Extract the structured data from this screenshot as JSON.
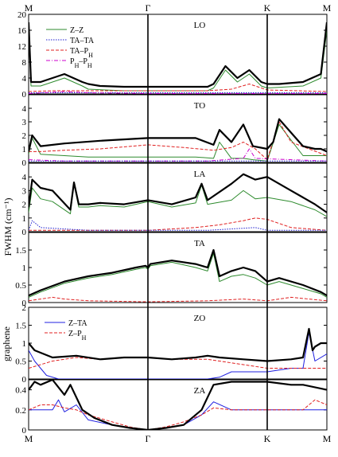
{
  "chart_data": {
    "type": "line",
    "x_symmetry_labels": [
      "M",
      "Γ",
      "K",
      "M"
    ],
    "x_symmetry_positions": [
      0,
      1,
      2,
      2.5
    ],
    "ylabel": "FWHM (cm⁻¹)",
    "side_label": "graphene",
    "colors": {
      "total": "#000000",
      "zz": "#2e8b2e",
      "tata": "#1f1fcf",
      "taph": "#e02020",
      "phph": "#cc00cc",
      "zta": "#2020e0",
      "zph": "#e02020"
    },
    "panels": [
      {
        "title": "LO",
        "ylim": [
          0,
          20
        ],
        "yticks": [
          0,
          4,
          8,
          12,
          16,
          20
        ],
        "legend": [
          "Z–Z",
          "TA–TA",
          "TA–P_H",
          "P_H–P_H"
        ],
        "series": [
          {
            "name": "",
            "role": "total",
            "x": [
              0,
              0.02,
              0.1,
              0.2,
              0.3,
              0.45,
              0.5,
              0.6,
              0.8,
              1.0,
              1.2,
              1.5,
              1.55,
              1.65,
              1.75,
              1.85,
              1.95,
              2.0,
              2.1,
              2.3,
              2.45,
              2.5
            ],
            "y": [
              18,
              3,
              3,
              4,
              5,
              3,
              2.5,
              2,
              1.8,
              1.8,
              1.8,
              1.8,
              2.5,
              7,
              4,
              6,
              3,
              2.5,
              2.5,
              3,
              5,
              18
            ]
          },
          {
            "name": "Z–Z",
            "role": "zz",
            "x": [
              0,
              0.02,
              0.1,
              0.2,
              0.3,
              0.45,
              0.5,
              0.8,
              1.0,
              1.2,
              1.5,
              1.55,
              1.65,
              1.75,
              1.85,
              1.95,
              2.0,
              2.3,
              2.45,
              2.5
            ],
            "y": [
              16,
              2,
              2,
              3,
              4,
              2,
              1.2,
              0.8,
              0.8,
              0.8,
              0.8,
              1.5,
              6,
              3,
              5,
              2,
              1.5,
              2,
              4,
              16
            ]
          },
          {
            "name": "TA–TA",
            "role": "tata",
            "x": [
              0,
              0.5,
              1.0,
              1.5,
              2.0,
              2.5
            ],
            "y": [
              0.3,
              0.3,
              0.3,
              0.3,
              0.3,
              0.3
            ]
          },
          {
            "name": "TA–P_H",
            "role": "taph",
            "x": [
              0,
              0.2,
              0.5,
              1.0,
              1.5,
              1.7,
              1.85,
              2.0,
              2.5
            ],
            "y": [
              0.6,
              0.8,
              0.8,
              0.8,
              0.8,
              1.2,
              2.5,
              1,
              0.6
            ]
          },
          {
            "name": "P_H–P_H",
            "role": "phph",
            "x": [
              0,
              0.3,
              0.5,
              1.0,
              1.5,
              2.0,
              2.5
            ],
            "y": [
              0.1,
              0.6,
              0.3,
              0.1,
              0.1,
              0.1,
              0.1
            ]
          }
        ]
      },
      {
        "title": "TO",
        "ylim": [
          0,
          5
        ],
        "yticks": [
          0,
          1,
          2,
          3,
          4,
          5
        ],
        "series": [
          {
            "name": "",
            "role": "total",
            "x": [
              0,
              0.03,
              0.1,
              0.3,
              0.6,
              1.0,
              1.4,
              1.55,
              1.6,
              1.7,
              1.8,
              1.88,
              2.0,
              2.05,
              2.1,
              2.3,
              2.4,
              2.45,
              2.5
            ],
            "y": [
              0.8,
              2,
              1.2,
              1.4,
              1.6,
              1.8,
              1.8,
              1.3,
              2.4,
              1.5,
              2.8,
              1.2,
              1,
              1.5,
              3.2,
              1.2,
              1,
              1,
              0.8
            ]
          },
          {
            "name": "",
            "role": "zz",
            "x": [
              0,
              0.03,
              0.1,
              0.5,
              1.0,
              1.4,
              1.55,
              1.6,
              1.7,
              1.8,
              1.88,
              2.0,
              2.1,
              2.3,
              2.5
            ],
            "y": [
              0.6,
              1.8,
              0.6,
              0.4,
              0.4,
              0.4,
              0.3,
              1.5,
              0.3,
              0.3,
              0.2,
              0.1,
              2.8,
              0.5,
              0.5
            ]
          },
          {
            "name": "",
            "role": "taph",
            "x": [
              0,
              0.1,
              0.3,
              0.6,
              1.0,
              1.3,
              1.55,
              1.7,
              1.8,
              1.9,
              2.0,
              2.1,
              2.2,
              2.5
            ],
            "y": [
              0.8,
              0.8,
              0.9,
              1.0,
              1.3,
              1.1,
              0.9,
              1.1,
              1.5,
              1.0,
              0.2,
              3.0,
              1.5,
              0.5
            ]
          },
          {
            "name": "",
            "role": "phph",
            "x": [
              0,
              0.3,
              0.6,
              1.0,
              1.5,
              1.8,
              1.85,
              1.9,
              2.5
            ],
            "y": [
              0.2,
              0.1,
              0.1,
              0.1,
              0.1,
              0.3,
              1.0,
              0.3,
              0.1
            ]
          },
          {
            "name": "",
            "role": "tata",
            "x": [
              0,
              0.5,
              1.0,
              1.5,
              2.0,
              2.5
            ],
            "y": [
              0.1,
              0.1,
              0.1,
              0.1,
              0.1,
              0.1
            ]
          }
        ]
      },
      {
        "title": "LA",
        "ylim": [
          0,
          5
        ],
        "yticks": [
          0,
          1,
          2,
          3,
          4,
          5
        ],
        "series": [
          {
            "name": "",
            "role": "total",
            "x": [
              0,
              0.03,
              0.1,
              0.2,
              0.35,
              0.38,
              0.42,
              0.5,
              0.6,
              0.8,
              1.0,
              1.2,
              1.4,
              1.45,
              1.5,
              1.7,
              1.8,
              1.9,
              2.0,
              2.2,
              2.4,
              2.5
            ],
            "y": [
              1.8,
              3.8,
              3.2,
              3.0,
              1.6,
              3.6,
              2.0,
              2.0,
              2.1,
              2.0,
              2.3,
              2.0,
              2.5,
              3.5,
              2.3,
              3.5,
              4.2,
              3.8,
              4.0,
              3.0,
              2.0,
              1.4
            ]
          },
          {
            "name": "",
            "role": "zz",
            "x": [
              0,
              0.03,
              0.1,
              0.2,
              0.35,
              0.38,
              0.42,
              0.5,
              0.6,
              0.8,
              1.0,
              1.2,
              1.4,
              1.45,
              1.5,
              1.7,
              1.8,
              1.9,
              2.0,
              2.2,
              2.4,
              2.5
            ],
            "y": [
              1.4,
              3.2,
              2.4,
              2.2,
              1.3,
              3.5,
              1.8,
              1.8,
              1.9,
              1.8,
              2.2,
              1.8,
              2.1,
              3.4,
              2.0,
              2.3,
              3.0,
              2.4,
              2.5,
              2.2,
              1.6,
              1.1
            ]
          },
          {
            "name": "",
            "role": "taph",
            "x": [
              0,
              0.3,
              0.6,
              1.0,
              1.4,
              1.6,
              1.8,
              1.9,
              2.0,
              2.2,
              2.5
            ],
            "y": [
              0.1,
              0.1,
              0.1,
              0.1,
              0.3,
              0.5,
              0.8,
              1.0,
              0.9,
              0.3,
              0.1
            ]
          },
          {
            "name": "",
            "role": "tata",
            "x": [
              0,
              0.03,
              0.1,
              0.5,
              1.0,
              1.5,
              1.9,
              2.0,
              2.5
            ],
            "y": [
              0.1,
              0.8,
              0.3,
              0.1,
              0.1,
              0.1,
              0.3,
              0.1,
              0.1
            ]
          }
        ]
      },
      {
        "title": "TA",
        "ylim": [
          0,
          2
        ],
        "yticks": [
          0,
          0.5,
          1,
          1.5,
          2
        ],
        "series": [
          {
            "name": "",
            "role": "total",
            "x": [
              0,
              0.1,
              0.3,
              0.5,
              0.7,
              0.9,
              0.98,
              1.0,
              1.02,
              1.2,
              1.4,
              1.5,
              1.55,
              1.6,
              1.7,
              1.8,
              1.9,
              2.0,
              2.1,
              2.3,
              2.45,
              2.5
            ],
            "y": [
              0.2,
              0.35,
              0.6,
              0.75,
              0.85,
              1.0,
              1.05,
              1.0,
              1.1,
              1.2,
              1.1,
              1.0,
              1.5,
              0.75,
              0.9,
              1.0,
              0.9,
              0.6,
              0.7,
              0.5,
              0.3,
              0.2
            ]
          },
          {
            "name": "",
            "role": "zz",
            "x": [
              0,
              0.1,
              0.3,
              0.5,
              0.7,
              0.9,
              0.98,
              1.0,
              1.02,
              1.2,
              1.4,
              1.5,
              1.55,
              1.6,
              1.7,
              1.8,
              1.9,
              2.0,
              2.1,
              2.3,
              2.45,
              2.5
            ],
            "y": [
              0.15,
              0.3,
              0.55,
              0.7,
              0.8,
              0.95,
              1.0,
              0.95,
              1.05,
              1.15,
              1.0,
              0.9,
              1.4,
              0.6,
              0.75,
              0.8,
              0.7,
              0.5,
              0.6,
              0.4,
              0.25,
              0.15
            ]
          },
          {
            "name": "",
            "role": "taph",
            "x": [
              0,
              0.1,
              0.2,
              0.3,
              0.5,
              1.0,
              1.5,
              1.8,
              2.0,
              2.2,
              2.5
            ],
            "y": [
              0.05,
              0.1,
              0.15,
              0.1,
              0.05,
              0.02,
              0.05,
              0.1,
              0.05,
              0.15,
              0.05
            ]
          }
        ]
      },
      {
        "title": "ZO",
        "ylim": [
          0,
          2
        ],
        "yticks": [
          0,
          0.5,
          1,
          1.5,
          2
        ],
        "legend": [
          "Z–TA",
          "Z–P_H"
        ],
        "series": [
          {
            "name": "",
            "role": "total",
            "x": [
              0,
              0.05,
              0.2,
              0.4,
              0.6,
              0.8,
              1.0,
              1.2,
              1.4,
              1.5,
              1.6,
              1.8,
              2.0,
              2.2,
              2.3,
              2.35,
              2.38,
              2.4,
              2.45,
              2.5
            ],
            "y": [
              1.0,
              0.8,
              0.6,
              0.65,
              0.55,
              0.6,
              0.6,
              0.55,
              0.6,
              0.65,
              0.6,
              0.55,
              0.5,
              0.55,
              0.6,
              1.4,
              0.8,
              0.9,
              1.0,
              1.0
            ]
          },
          {
            "name": "Z–TA",
            "role": "zta",
            "x": [
              0,
              0.05,
              0.15,
              0.25,
              0.5,
              1.0,
              1.5,
              1.6,
              1.7,
              2.0,
              2.2,
              2.3,
              2.35,
              2.4,
              2.5
            ],
            "y": [
              0.8,
              0.5,
              0.1,
              0.0,
              0.0,
              0.0,
              0.0,
              0.05,
              0.2,
              0.2,
              0.3,
              0.3,
              1.3,
              0.5,
              0.7
            ]
          },
          {
            "name": "Z–P_H",
            "role": "zph",
            "x": [
              0,
              0.1,
              0.2,
              0.4,
              0.6,
              0.8,
              1.0,
              1.2,
              1.4,
              1.5,
              1.6,
              1.8,
              2.0,
              2.2,
              2.5
            ],
            "y": [
              0.3,
              0.4,
              0.5,
              0.6,
              0.55,
              0.6,
              0.6,
              0.55,
              0.55,
              0.55,
              0.5,
              0.4,
              0.3,
              0.3,
              0.3
            ]
          }
        ]
      },
      {
        "title": "ZA",
        "ylim": [
          0,
          0.5
        ],
        "yticks": [
          0,
          0.2,
          0.4
        ],
        "series": [
          {
            "name": "",
            "role": "total",
            "x": [
              0,
              0.05,
              0.1,
              0.2,
              0.3,
              0.35,
              0.45,
              0.55,
              0.7,
              0.85,
              1.0,
              1.15,
              1.3,
              1.45,
              1.55,
              1.7,
              1.8,
              1.9,
              2.0,
              2.2,
              2.3,
              2.5
            ],
            "y": [
              0.4,
              0.48,
              0.45,
              0.5,
              0.35,
              0.45,
              0.2,
              0.12,
              0.05,
              0.02,
              0.0,
              0.02,
              0.05,
              0.2,
              0.45,
              0.48,
              0.48,
              0.48,
              0.48,
              0.45,
              0.45,
              0.4
            ]
          },
          {
            "name": "",
            "role": "zta",
            "x": [
              0,
              0.1,
              0.2,
              0.25,
              0.3,
              0.4,
              0.5,
              0.7,
              0.85,
              1.0,
              1.15,
              1.3,
              1.45,
              1.55,
              1.7,
              2.0,
              2.3,
              2.5
            ],
            "y": [
              0.2,
              0.2,
              0.2,
              0.3,
              0.18,
              0.25,
              0.1,
              0.05,
              0.02,
              0.0,
              0.02,
              0.05,
              0.15,
              0.28,
              0.2,
              0.2,
              0.2,
              0.2
            ]
          },
          {
            "name": "",
            "role": "zph",
            "x": [
              0,
              0.1,
              0.2,
              0.3,
              0.4,
              0.5,
              0.7,
              0.85,
              1.0,
              1.15,
              1.3,
              1.45,
              1.55,
              1.7,
              2.0,
              2.3,
              2.4,
              2.5
            ],
            "y": [
              0.2,
              0.25,
              0.25,
              0.22,
              0.2,
              0.15,
              0.08,
              0.03,
              0.0,
              0.03,
              0.08,
              0.15,
              0.22,
              0.2,
              0.2,
              0.2,
              0.3,
              0.25
            ]
          }
        ]
      }
    ]
  }
}
